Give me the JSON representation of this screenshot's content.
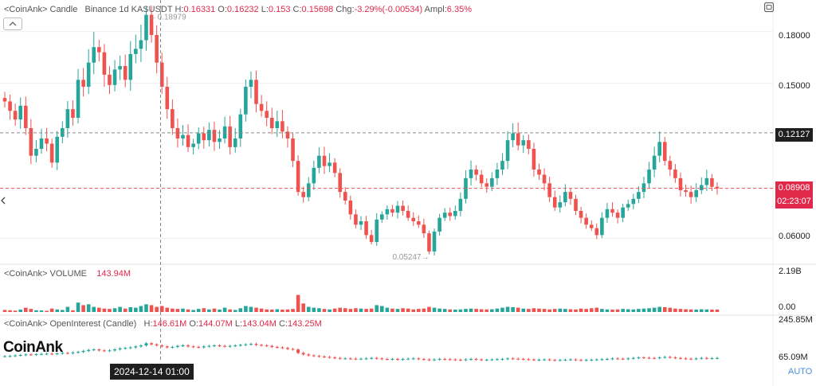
{
  "header": {
    "source": "<CoinAnk>",
    "chart_label": "Candle",
    "symbol": "Binance 1d KASUSDT",
    "h_label": "H:",
    "h_value": "0.16331",
    "o_label": "O:",
    "o_value": "0.16232",
    "l_label": "L:",
    "l_value": "0.153",
    "c_label": "C:",
    "c_value": "0.15698",
    "chg_label": "Chg:",
    "chg_value": "-3.29%(-0.00534)",
    "ampl_label": "Ampl:",
    "ampl_value": "6.35%"
  },
  "volume_header": {
    "source": "<CoinAnk>",
    "label": "VOLUME",
    "value": "143.94M"
  },
  "oi_header": {
    "source": "<CoinAnk>",
    "label": "OpenInterest (Candle)",
    "h_label": "H:",
    "h_value": "146.61M",
    "o_label": "O:",
    "o_value": "144.07M",
    "l_label": "L:",
    "l_value": "143.04M",
    "c_label": "C:",
    "c_value": "143.25M"
  },
  "price_axis": {
    "ticks": [
      "0.18000",
      "0.15000",
      "0.06000"
    ],
    "current_price": "0.08908",
    "countdown": "02:23:07",
    "crosshair_price": "0.12127"
  },
  "volume_axis": {
    "ticks": [
      "2.19B",
      "0.00"
    ]
  },
  "oi_axis": {
    "ticks": [
      "245.85M",
      "65.09M"
    ]
  },
  "annotations": {
    "high": "0.18979",
    "low": "0.05247"
  },
  "crosshair_date": "2024-12-14 01:00",
  "brand": "CoinAnk",
  "auto_label": "AUTO",
  "colors": {
    "up": "#26a69a",
    "down": "#ef5350",
    "accent": "#e0294a",
    "crosshair_box": "#1f1f1f"
  },
  "chart_data": [
    {
      "type": "candlestick",
      "title": "Binance 1d KASUSDT",
      "ylim": [
        0.046,
        0.196
      ],
      "ticks": [
        0.06,
        0.15,
        0.18
      ],
      "grid": true,
      "closes": [
        0.1395,
        0.134,
        0.129,
        0.137,
        0.124,
        0.108,
        0.112,
        0.118,
        0.115,
        0.104,
        0.119,
        0.124,
        0.135,
        0.13,
        0.152,
        0.148,
        0.162,
        0.171,
        0.168,
        0.155,
        0.149,
        0.158,
        0.16,
        0.152,
        0.167,
        0.17,
        0.175,
        0.1897,
        0.178,
        0.162,
        0.148,
        0.135,
        0.124,
        0.118,
        0.12,
        0.113,
        0.115,
        0.121,
        0.117,
        0.123,
        0.116,
        0.118,
        0.125,
        0.113,
        0.118,
        0.132,
        0.148,
        0.152,
        0.138,
        0.134,
        0.13,
        0.124,
        0.128,
        0.122,
        0.118,
        0.105,
        0.087,
        0.084,
        0.092,
        0.101,
        0.108,
        0.102,
        0.104,
        0.098,
        0.087,
        0.082,
        0.074,
        0.068,
        0.07,
        0.062,
        0.058,
        0.071,
        0.074,
        0.077,
        0.075,
        0.079,
        0.076,
        0.072,
        0.07,
        0.068,
        0.063,
        0.0525,
        0.064,
        0.072,
        0.075,
        0.073,
        0.076,
        0.083,
        0.095,
        0.1,
        0.097,
        0.092,
        0.09,
        0.095,
        0.1,
        0.105,
        0.117,
        0.121,
        0.114,
        0.117,
        0.112,
        0.1,
        0.097,
        0.092,
        0.084,
        0.078,
        0.081,
        0.087,
        0.083,
        0.076,
        0.072,
        0.068,
        0.066,
        0.062,
        0.072,
        0.077,
        0.075,
        0.072,
        0.078,
        0.08,
        0.083,
        0.087,
        0.092,
        0.1,
        0.108,
        0.116,
        0.105,
        0.1,
        0.095,
        0.088,
        0.087,
        0.084,
        0.088,
        0.091,
        0.095,
        0.09,
        0.0891
      ],
      "high_annotation": 0.18979,
      "low_annotation": 0.05247,
      "last_price": 0.08908,
      "crosshair_price": 0.12127
    },
    {
      "type": "bar",
      "title": "VOLUME",
      "ylim": [
        0,
        2.19
      ],
      "unit": "B",
      "values": [
        0.12,
        0.1,
        0.08,
        0.14,
        0.25,
        0.18,
        0.1,
        0.09,
        0.07,
        0.2,
        0.15,
        0.12,
        0.3,
        0.1,
        0.55,
        0.4,
        0.45,
        0.3,
        0.25,
        0.2,
        0.18,
        0.22,
        0.3,
        0.2,
        0.28,
        0.25,
        0.35,
        0.45,
        0.4,
        0.3,
        0.35,
        0.25,
        0.2,
        0.18,
        0.2,
        0.15,
        0.12,
        0.18,
        0.22,
        0.15,
        0.2,
        0.14,
        0.25,
        0.15,
        0.12,
        0.22,
        0.35,
        0.3,
        0.25,
        0.2,
        0.15,
        0.14,
        0.16,
        0.14,
        0.15,
        0.18,
        1.0,
        0.5,
        0.3,
        0.25,
        0.22,
        0.18,
        0.15,
        0.2,
        0.25,
        0.22,
        0.18,
        0.22,
        0.2,
        0.18,
        0.2,
        0.4,
        0.35,
        0.25,
        0.2,
        0.18,
        0.22,
        0.2,
        0.15,
        0.18,
        0.2,
        0.3,
        0.25,
        0.2,
        0.18,
        0.15,
        0.14,
        0.15,
        0.18,
        0.2,
        0.18,
        0.16,
        0.15,
        0.16,
        0.2,
        0.25,
        0.3,
        0.28,
        0.25,
        0.2,
        0.18,
        0.22,
        0.2,
        0.18,
        0.15,
        0.18,
        0.2,
        0.18,
        0.16,
        0.15,
        0.2,
        0.18,
        0.22,
        0.25,
        0.18,
        0.15,
        0.14,
        0.15,
        0.18,
        0.16,
        0.15,
        0.18,
        0.2,
        0.22,
        0.25,
        0.3,
        0.28,
        0.25,
        0.2,
        0.18,
        0.16,
        0.15,
        0.14,
        0.16,
        0.15,
        0.14,
        0.14
      ]
    },
    {
      "type": "line",
      "title": "OpenInterest (Candle)",
      "ylim": [
        65.09,
        245.85
      ],
      "unit": "M",
      "values": [
        95,
        96,
        98,
        100,
        102,
        101,
        103,
        104,
        105,
        104,
        106,
        108,
        107,
        110,
        112,
        116,
        120,
        122,
        118,
        116,
        118,
        122,
        126,
        128,
        130,
        134,
        138,
        146.6,
        142,
        138,
        134,
        130,
        132,
        136,
        138,
        134,
        132,
        130,
        134,
        136,
        138,
        136,
        134,
        136,
        138,
        140,
        142,
        144,
        140,
        138,
        136,
        132,
        130,
        128,
        124,
        122,
        108,
        102,
        98,
        96,
        94,
        92,
        90,
        88,
        86,
        86,
        85,
        84,
        85,
        86,
        88,
        86,
        84,
        83,
        84,
        82,
        84,
        85,
        86,
        84,
        82,
        80,
        82,
        84,
        83,
        82,
        81,
        80,
        82,
        84,
        82,
        80,
        81,
        82,
        83,
        84,
        86,
        85,
        84,
        83,
        82,
        80,
        81,
        82,
        80,
        79,
        80,
        81,
        82,
        80,
        79,
        80,
        81,
        82,
        83,
        84,
        86,
        85,
        84,
        86,
        88,
        90,
        89,
        88,
        87,
        90,
        92,
        90,
        88,
        86,
        85,
        84,
        86,
        88,
        86,
        87,
        88
      ]
    }
  ]
}
